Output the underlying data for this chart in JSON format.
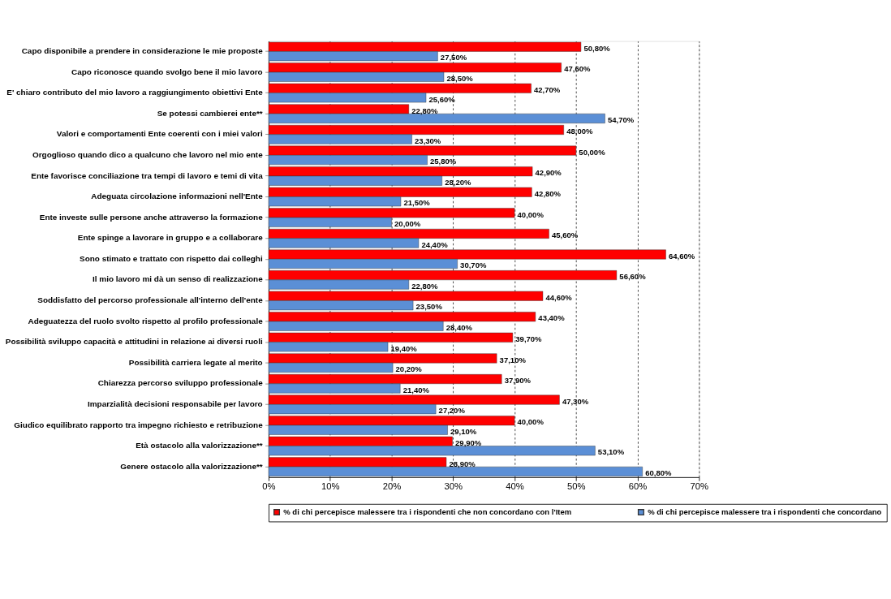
{
  "chart_data": {
    "type": "bar",
    "orientation": "horizontal",
    "categories": [
      "Capo disponibile a prendere in considerazione le mie proposte",
      "Capo riconosce quando svolgo bene il mio lavoro",
      "E' chiaro contributo del mio lavoro a raggiungimento  obiettivi Ente",
      "Se potessi cambierei ente**",
      "Valori e comportamenti Ente coerenti con i miei valori",
      "Orgoglioso quando dico a qualcuno che lavoro nel mio ente",
      "Ente favorisce conciliazione tra tempi di lavoro e temi di vita",
      "Adeguata circolazione  informazioni nell'Ente",
      "Ente investe sulle persone anche attraverso la formazione",
      "Ente spinge a lavorare in gruppo e a collaborare",
      "Sono stimato e trattato con rispetto dai colleghi",
      "Il mio lavoro mi dà un senso di realizzazione",
      "Soddisfatto del percorso professionale all'interno dell'ente",
      "Adeguatezza del ruolo svolto rispetto al profilo professionale",
      "Possibilità sviluppo capacità e attitudini in relazione ai diversi ruoli",
      "Possibilità carriera legate al merito",
      "Chiarezza percorso sviluppo professionale",
      "Imparzialità decisioni  responsabile per lavoro",
      "Giudico equilibrato rapporto tra impegno richiesto e retribuzione",
      "Età ostacolo alla valorizzazione**",
      "Genere ostacolo alla valorizzazione**"
    ],
    "series": [
      {
        "name": "% di chi percepisce malessere tra i rispondenti che non concordano con l'Item",
        "color": "#ff0000",
        "values": [
          50.8,
          47.6,
          42.7,
          22.8,
          48.0,
          50.0,
          42.9,
          42.8,
          40.0,
          45.6,
          64.6,
          56.6,
          44.6,
          43.4,
          39.7,
          37.1,
          37.9,
          47.3,
          40.0,
          29.9,
          28.9
        ],
        "value_labels": [
          "50,80%",
          "47,60%",
          "42,70%",
          "22,80%",
          "48,00%",
          "50,00%",
          "42,90%",
          "42,80%",
          "40,00%",
          "45,60%",
          "64,60%",
          "56,60%",
          "44,60%",
          "43,40%",
          "39,70%",
          "37,10%",
          "37,90%",
          "47,30%",
          "40,00%",
          "29,90%",
          "28,90%"
        ]
      },
      {
        "name": "% di chi percepisce malessere tra i rispondenti che concordano",
        "color": "#5b8fd6",
        "values": [
          27.5,
          28.5,
          25.6,
          54.7,
          23.3,
          25.8,
          28.2,
          21.5,
          20.0,
          24.4,
          30.7,
          22.8,
          23.5,
          28.4,
          19.4,
          20.2,
          21.4,
          27.2,
          29.1,
          53.1,
          60.8
        ],
        "value_labels": [
          "27,50%",
          "28,50%",
          "25,60%",
          "54,70%",
          "23,30%",
          "25,80%",
          "28,20%",
          "21,50%",
          "20,00%",
          "24,40%",
          "30,70%",
          "22,80%",
          "23,50%",
          "28,40%",
          "19,40%",
          "20,20%",
          "21,40%",
          "27,20%",
          "29,10%",
          "53,10%",
          "60,80%"
        ]
      }
    ],
    "xlim": [
      0,
      70
    ],
    "xticks": [
      {
        "value": 0,
        "label": "0%"
      },
      {
        "value": 10,
        "label": "10%"
      },
      {
        "value": 20,
        "label": "20%"
      },
      {
        "value": 30,
        "label": "30%"
      },
      {
        "value": 40,
        "label": "40%"
      },
      {
        "value": 50,
        "label": "50%"
      },
      {
        "value": 60,
        "label": "60%"
      },
      {
        "value": 70,
        "label": "70%"
      }
    ],
    "grid": "x",
    "legend": "bottom"
  }
}
